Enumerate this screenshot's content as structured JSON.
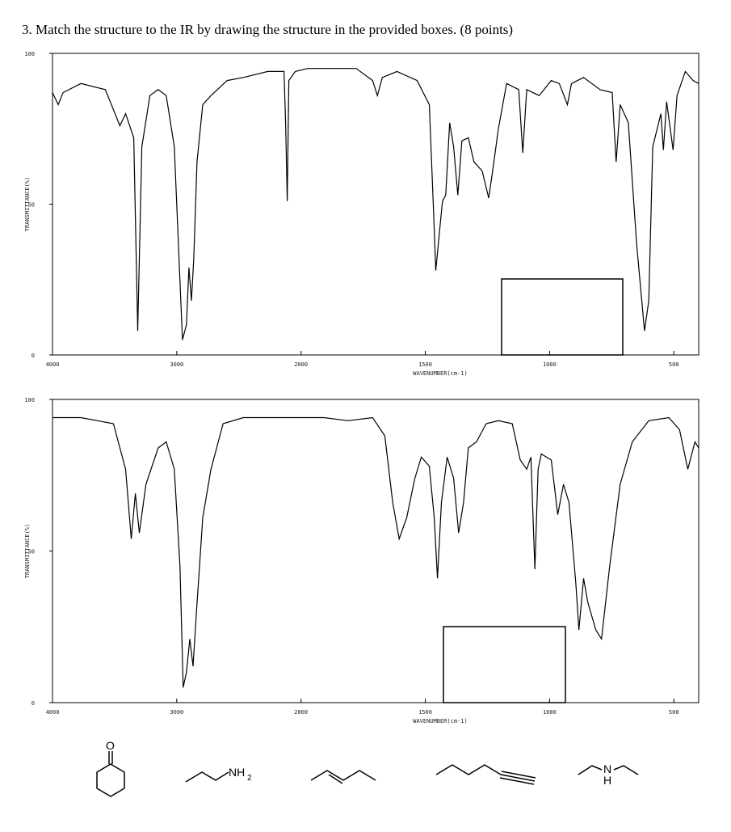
{
  "title": "3. Match the structure to the IR by drawing the structure in the provided boxes. (8 points)",
  "chart_data": [
    {
      "type": "line",
      "xlabel": "WAVENUMBER(cm-1)",
      "ylabel": "TRANSMITTANCE(%)",
      "xlim": [
        4000,
        400
      ],
      "ylim": [
        0,
        100
      ],
      "xticks": [
        4000,
        3000,
        2000,
        1500,
        1000,
        500
      ],
      "yticks": [
        0,
        50,
        100
      ],
      "color": "#000000",
      "x": [
        4000,
        3954,
        3915,
        3771,
        3575,
        3458,
        3412,
        3346,
        3314,
        3281,
        3216,
        3150,
        3085,
        3020,
        2954,
        2922,
        2902,
        2882,
        2863,
        2837,
        2791,
        2725,
        2595,
        2464,
        2268,
        2137,
        2124,
        2111,
        2098,
        2046,
        1974,
        1843,
        1778,
        1712,
        1693,
        1673,
        1614,
        1533,
        1484,
        1467,
        1458,
        1444,
        1431,
        1418,
        1402,
        1386,
        1369,
        1353,
        1327,
        1304,
        1271,
        1245,
        1229,
        1206,
        1173,
        1124,
        1108,
        1092,
        1042,
        993,
        961,
        928,
        912,
        863,
        797,
        748,
        732,
        716,
        683,
        650,
        618,
        601,
        585,
        552,
        542,
        529,
        503,
        487,
        454,
        422,
        400
      ],
      "values": [
        87,
        83,
        87,
        90,
        88,
        76,
        80,
        72,
        8,
        69,
        86,
        88,
        86,
        69,
        5,
        10,
        29,
        18,
        32,
        64,
        83,
        86,
        91,
        92,
        94,
        94,
        77,
        51,
        91,
        94,
        95,
        95,
        95,
        91,
        86,
        92,
        94,
        91,
        83,
        48,
        28,
        40,
        51,
        53,
        77,
        69,
        53,
        71,
        72,
        64,
        61,
        52,
        61,
        75,
        90,
        88,
        67,
        88,
        86,
        91,
        90,
        83,
        90,
        92,
        88,
        87,
        64,
        83,
        77,
        37,
        8,
        18,
        69,
        80,
        68,
        84,
        68,
        86,
        94,
        91,
        90
      ]
    },
    {
      "type": "line",
      "xlabel": "WAVENUMBER(cm-1)",
      "ylabel": "TRANSMITTANCE(%)",
      "xlim": [
        4000,
        400
      ],
      "ylim": [
        0,
        100
      ],
      "xticks": [
        4000,
        3000,
        2000,
        1500,
        1000,
        500
      ],
      "yticks": [
        0,
        50,
        100
      ],
      "color": "#000000",
      "x": [
        4000,
        3771,
        3510,
        3412,
        3366,
        3333,
        3301,
        3248,
        3150,
        3085,
        3020,
        2974,
        2948,
        2922,
        2895,
        2869,
        2843,
        2791,
        2725,
        2627,
        2464,
        2137,
        1909,
        1810,
        1712,
        1663,
        1631,
        1605,
        1575,
        1542,
        1516,
        1484,
        1464,
        1451,
        1435,
        1412,
        1386,
        1366,
        1346,
        1327,
        1294,
        1255,
        1206,
        1150,
        1118,
        1092,
        1075,
        1059,
        1046,
        1033,
        993,
        967,
        944,
        922,
        895,
        882,
        863,
        846,
        814,
        791,
        758,
        716,
        667,
        601,
        520,
        477,
        444,
        415,
        400
      ],
      "values": [
        94,
        94,
        92,
        77,
        54,
        69,
        56,
        72,
        84,
        86,
        77,
        45,
        5,
        10,
        21,
        12,
        29,
        61,
        77,
        92,
        94,
        94,
        94,
        93,
        94,
        88,
        66,
        54,
        61,
        74,
        81,
        78,
        61,
        41,
        66,
        81,
        74,
        56,
        66,
        84,
        86,
        92,
        93,
        92,
        80,
        77,
        81,
        44,
        77,
        82,
        80,
        62,
        72,
        66,
        40,
        24,
        41,
        33,
        24,
        21,
        45,
        72,
        86,
        93,
        94,
        90,
        77,
        86,
        84
      ]
    }
  ],
  "structures": {
    "ketone_o": "O",
    "amine_nh": "NH",
    "amine_sub": "2",
    "sec_n": "N",
    "sec_h": "H"
  }
}
